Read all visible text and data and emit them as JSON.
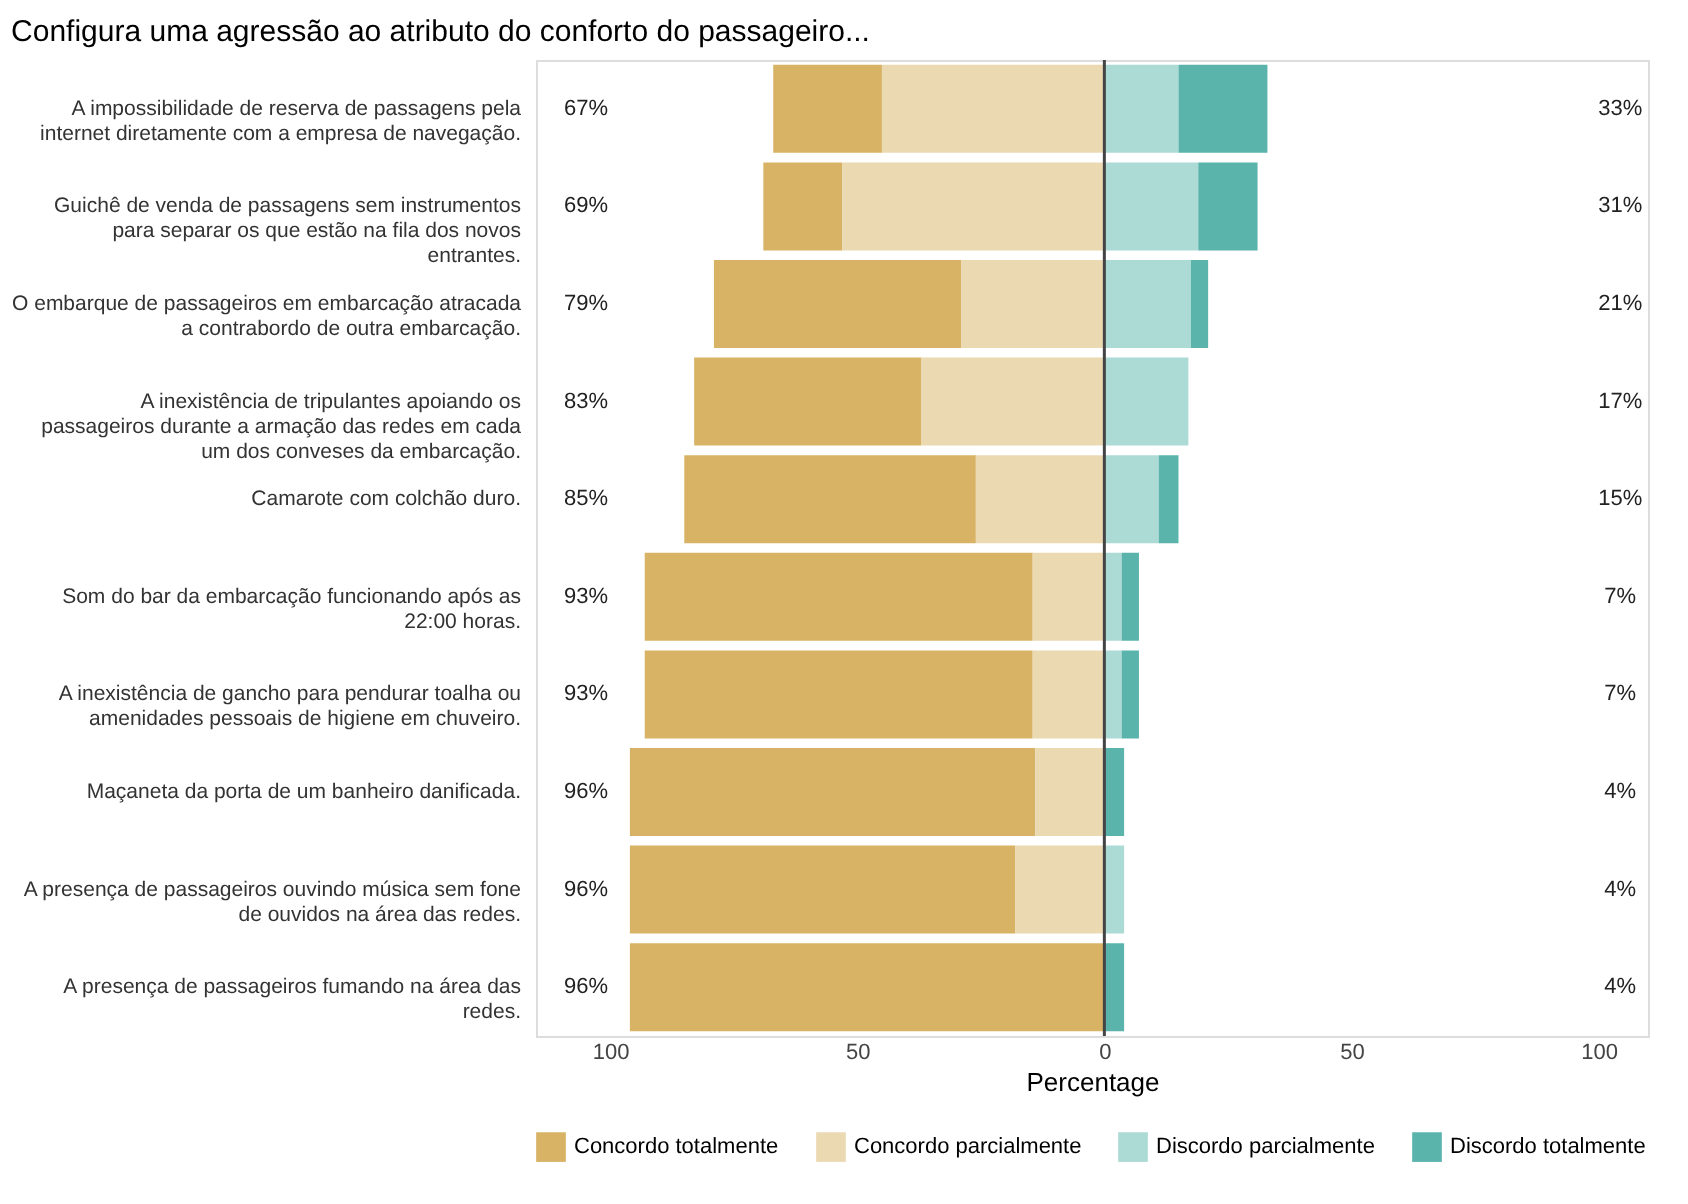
{
  "chart_data": {
    "type": "bar",
    "orientation": "horizontal",
    "stacked": true,
    "title": "Configura uma agressão ao atributo do conforto do passageiro...",
    "xlabel": "Percentage",
    "categories": [
      "A impossibilidade de reserva de passagens pela internet diretamente com a empresa de navegação.",
      "Guichê de venda de passagens sem instrumentos para separar os que estão na fila dos novos entrantes.",
      "O embarque de passageiros em embarcação atracada a contrabordo de outra embarcação.",
      "A inexistência de tripulantes apoiando os passageiros durante a armação das redes em cada um dos conveses da embarcação.",
      "Camarote com colchão duro.",
      "Som do bar da embarcação funcionando após as 22:00 horas.",
      "A inexistência de gancho para pendurar toalha ou amenidades pessoais de higiene em chuveiro.",
      "Maçaneta da porta de um banheiro danificada.",
      "A presença de passageiros ouvindo música sem fone de ouvidos na área das redes.",
      "A presença de passageiros fumando na área das redes."
    ],
    "series": [
      {
        "name": "Concordo totalmente",
        "color": "#d9b365",
        "values": [
          -22,
          -16,
          -50,
          -46,
          -59,
          -78.5,
          -78.5,
          -82,
          -78,
          -96
        ]
      },
      {
        "name": "Concordo parcialmente",
        "color": "#ebd9b2",
        "values": [
          -45,
          -53,
          -29,
          -37,
          -26,
          -14.5,
          -14.5,
          -14,
          -18,
          0
        ]
      },
      {
        "name": "Discordo parcialmente",
        "color": "#acdad5",
        "values": [
          15,
          19,
          17.5,
          17,
          11,
          3.5,
          3.5,
          0,
          4,
          0
        ]
      },
      {
        "name": "Discordo totalmente",
        "color": "#5ab4ac",
        "values": [
          18,
          12,
          3.5,
          0,
          4,
          3.5,
          3.5,
          4,
          0,
          4
        ]
      }
    ],
    "xlim": [
      -115,
      110
    ],
    "xticks": [
      {
        "value": -100,
        "label": "100"
      },
      {
        "value": -50,
        "label": "50"
      },
      0,
      50,
      100
    ],
    "ref_lines": [
      {
        "axis": "x",
        "value": 0,
        "color": "#444444"
      }
    ],
    "annotations": [
      "67%",
      "33%",
      "69%",
      "31%",
      "79%",
      "21%",
      "83%",
      "17%",
      "85%",
      "15%",
      "93%",
      "7%",
      "93%",
      "7%",
      "96%",
      "4%",
      "96%",
      "4%",
      "96%",
      "4%"
    ],
    "grid": false,
    "legend": "bottom"
  }
}
